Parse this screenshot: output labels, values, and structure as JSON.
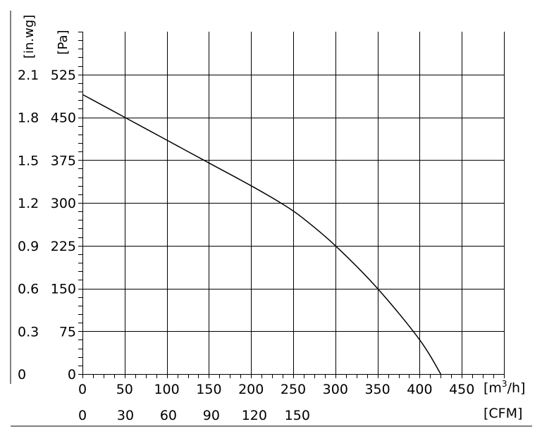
{
  "chart_data": {
    "type": "line",
    "title": "",
    "grid": true,
    "x_axis": {
      "label": "[m³/h]",
      "label_base": "[m",
      "label_sup": "3",
      "label_tail": "/h]",
      "range": [
        0,
        500
      ],
      "ticks": [
        "0",
        "50",
        "100",
        "150",
        "200",
        "250",
        "300",
        "350",
        "400",
        "450"
      ],
      "tick_values": [
        0,
        50,
        100,
        150,
        200,
        250,
        300,
        350,
        400,
        450
      ]
    },
    "x_axis_secondary": {
      "label": "[CFM]",
      "ticks": [
        "0",
        "30",
        "60",
        "90",
        "120",
        "150"
      ],
      "tick_values_m3h": [
        0,
        50.97,
        101.94,
        152.91,
        203.88,
        254.85
      ]
    },
    "y_axis": {
      "label": "[Pa]",
      "range": [
        0,
        600
      ],
      "ticks": [
        "0",
        "75",
        "150",
        "225",
        "300",
        "375",
        "450",
        "525"
      ],
      "tick_values": [
        0,
        75,
        150,
        225,
        300,
        375,
        450,
        525
      ]
    },
    "y_axis_secondary": {
      "label": "[in.wg]",
      "ticks": [
        "0",
        "0.3",
        "0.6",
        "0.9",
        "1.2",
        "1.5",
        "1.8",
        "2.1"
      ]
    },
    "series": [
      {
        "name": "",
        "x": [
          0,
          50,
          100,
          150,
          200,
          235,
          260,
          300,
          350,
          400,
          425
        ],
        "y": [
          490,
          450,
          410,
          370,
          330,
          300,
          275,
          225,
          150,
          60,
          0
        ]
      }
    ]
  }
}
